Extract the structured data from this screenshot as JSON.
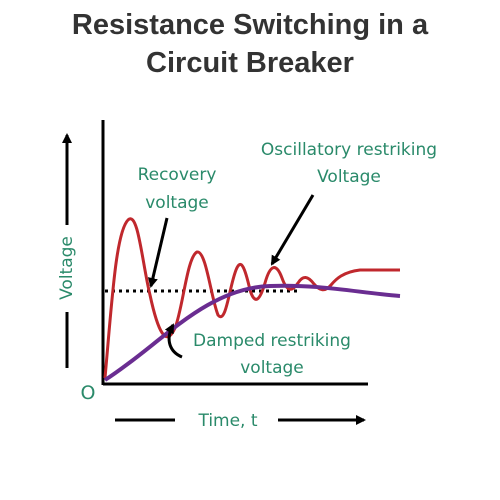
{
  "title": {
    "line1": "Resistance Switching in a",
    "line2": "Circuit Breaker"
  },
  "axes": {
    "y_label": "Voltage",
    "x_label": "Time, t",
    "origin": "O"
  },
  "annotations": {
    "recovery_line1": "Recovery",
    "recovery_line2": "voltage",
    "oscillatory_line1": "Oscillatory restriking",
    "oscillatory_line2": "Voltage",
    "damped_line1": "Damped restriking",
    "damped_line2": "voltage"
  },
  "colors": {
    "title": "#333333",
    "label": "#2a8a6a",
    "oscillatory_curve": "#c0282d",
    "damped_curve": "#6a2d91",
    "axis": "#000000"
  }
}
